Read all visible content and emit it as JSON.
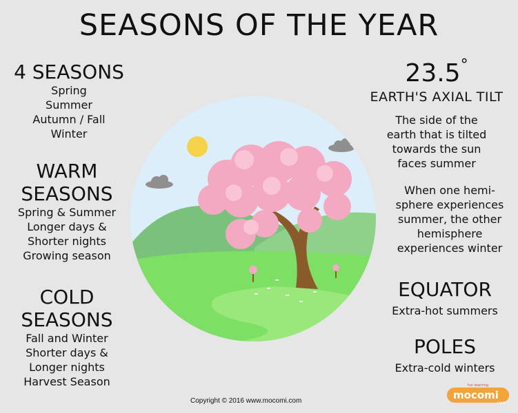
{
  "title": "SEASONS OF THE YEAR",
  "four_seasons": {
    "heading": "4 SEASONS",
    "items": [
      "Spring",
      "Summer",
      "Autumn / Fall",
      "Winter"
    ]
  },
  "warm": {
    "heading": [
      "WARM",
      "SEASONS"
    ],
    "lines": [
      "Spring & Summer",
      "Longer days &",
      "Shorter nights",
      "Growing season"
    ]
  },
  "cold": {
    "heading": [
      "COLD",
      "SEASONS"
    ],
    "lines": [
      "Fall and Winter",
      "Shorter days &",
      "Longer nights",
      "Harvest Season"
    ]
  },
  "tilt": {
    "degrees": "23.5",
    "degree_symbol": "°",
    "label": "EARTH'S AXIAL TILT",
    "lines": [
      "The side of the",
      "earth that is tilted",
      "towards the sun",
      "faces summer"
    ]
  },
  "hemisphere": {
    "lines": [
      "When one hemi-",
      "sphere experiences",
      "summer, the other",
      "hemisphere",
      "experiences winter"
    ]
  },
  "equator": {
    "heading": "EQUATOR",
    "text": "Extra-hot summers"
  },
  "poles": {
    "heading": "POLES",
    "text": "Extra-cold winters"
  },
  "copyright": "Copyright © 2016  www.mocomi.com",
  "logo": {
    "brand": "mocomi",
    "sub": ".com",
    "top": "fun learning"
  },
  "colors": {
    "sky": "#dbeefa",
    "grass": "#7ddf63",
    "hills": "#7ac27c",
    "blossom": "#f4a9c3",
    "trunk": "#8b5a2b",
    "sun": "#f6d14a",
    "cloud": "#8f8f8f"
  }
}
